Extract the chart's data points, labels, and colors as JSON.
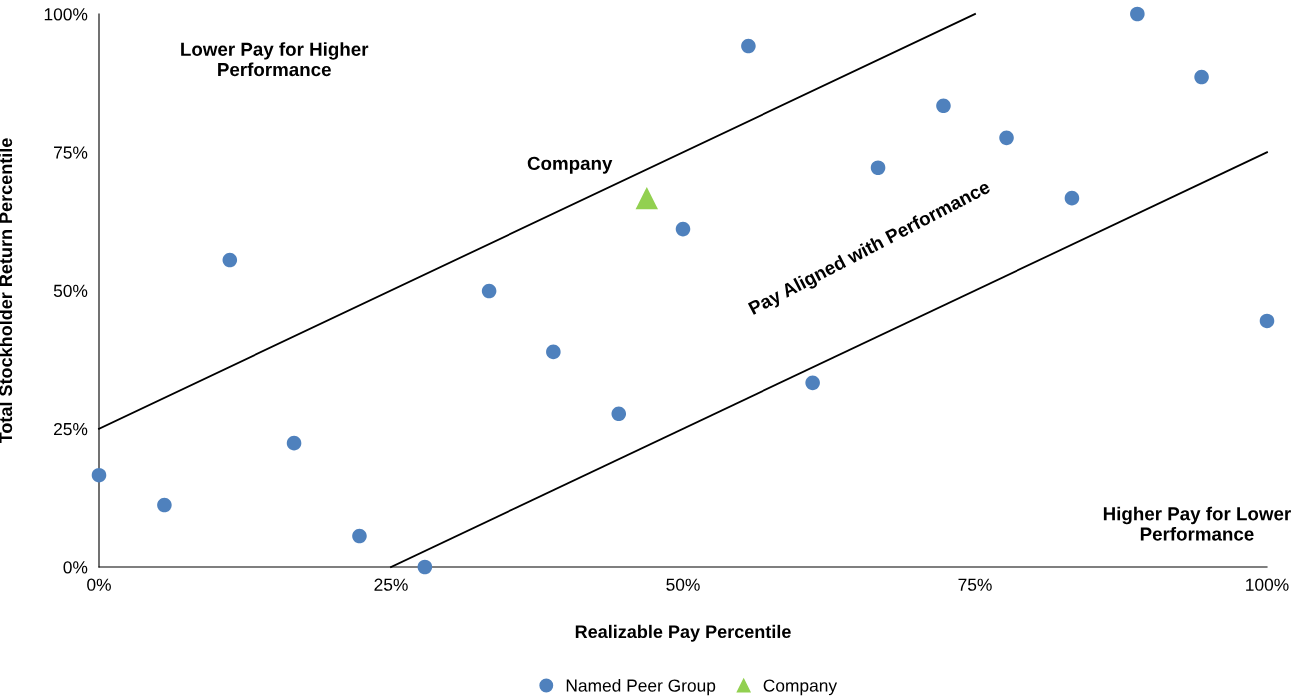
{
  "chart_data": {
    "type": "scatter",
    "xlabel": "Realizable Pay Percentile",
    "ylabel": "Total Stockholder Return Percentile",
    "xlim": [
      0,
      100
    ],
    "ylim": [
      0,
      100
    ],
    "xticks": [
      {
        "value": 0,
        "label": "0%"
      },
      {
        "value": 25,
        "label": "25%"
      },
      {
        "value": 50,
        "label": "50%"
      },
      {
        "value": 75,
        "label": "75%"
      },
      {
        "value": 100,
        "label": "100%"
      }
    ],
    "yticks": [
      {
        "value": 0,
        "label": "0%"
      },
      {
        "value": 25,
        "label": "25%"
      },
      {
        "value": 50,
        "label": "50%"
      },
      {
        "value": 75,
        "label": "75%"
      },
      {
        "value": 100,
        "label": "100%"
      }
    ],
    "grid": false,
    "legend": "bottom",
    "series": [
      {
        "name": "Named Peer Group",
        "color": "#4f81bd",
        "marker": "circle",
        "x": [
          0,
          5.6,
          11.2,
          16.7,
          22.3,
          27.9,
          33.4,
          38.9,
          44.5,
          50.0,
          55.6,
          61.1,
          66.7,
          72.3,
          77.7,
          83.3,
          88.9,
          94.4,
          100
        ],
        "values": [
          16.6,
          11.2,
          55.5,
          22.4,
          5.6,
          0,
          49.9,
          38.9,
          27.7,
          61.1,
          94.2,
          33.3,
          72.2,
          83.4,
          77.6,
          66.7,
          100,
          88.6,
          44.5
        ]
      },
      {
        "name": "Company",
        "color": "#92d050",
        "marker": "triangle",
        "x": [
          46.9
        ],
        "values": [
          66.7
        ]
      },
      {
        "type": "line",
        "color": "#000000",
        "x": [
          0,
          75
        ],
        "values": [
          25,
          100
        ]
      },
      {
        "type": "line",
        "color": "#000000",
        "x": [
          25,
          100
        ],
        "values": [
          0,
          75
        ]
      }
    ],
    "annotations": [
      "Company",
      "Lower Pay for Higher Performance",
      "Pay Aligned with Performance",
      "Higher Pay for Lower Performance"
    ]
  }
}
